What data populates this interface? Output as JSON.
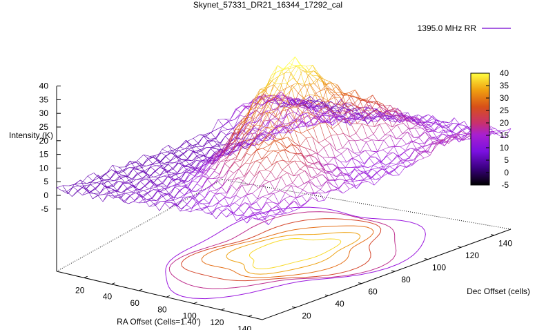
{
  "chart_data": {
    "type": "surface3d",
    "title": "Skynet_57331_DR21_16344_17292_cal",
    "xlabel": "RA Offset (Cells=1.40')",
    "ylabel": "Dec Offset (cells)",
    "zlabel": "Intensity (K)",
    "series_name": "1395.0 MHz RR",
    "legend_position": "top-right",
    "x_ticks": [
      "20",
      "40",
      "60",
      "80",
      "100",
      "120",
      "140"
    ],
    "y_ticks": [
      "20",
      "40",
      "60",
      "80",
      "100",
      "120",
      "140"
    ],
    "z_ticks": [
      "-5",
      "0",
      "5",
      "10",
      "15",
      "20",
      "25",
      "30",
      "35",
      "40"
    ],
    "colorbar_ticks": [
      "-5",
      "0",
      "5",
      "10",
      "15",
      "20",
      "25",
      "30",
      "35",
      "40"
    ],
    "colorbar_range": [
      -5,
      40
    ],
    "xlim": [
      0,
      150
    ],
    "ylim": [
      0,
      150
    ],
    "zlim": [
      -5,
      40
    ],
    "colormap": [
      "#000000",
      "#5a00a8",
      "#9a18e0",
      "#c0308a",
      "#d84a20",
      "#e87818",
      "#f0b010",
      "#ffff40"
    ],
    "peak": {
      "x": 80,
      "y": 75,
      "z": 40
    }
  }
}
